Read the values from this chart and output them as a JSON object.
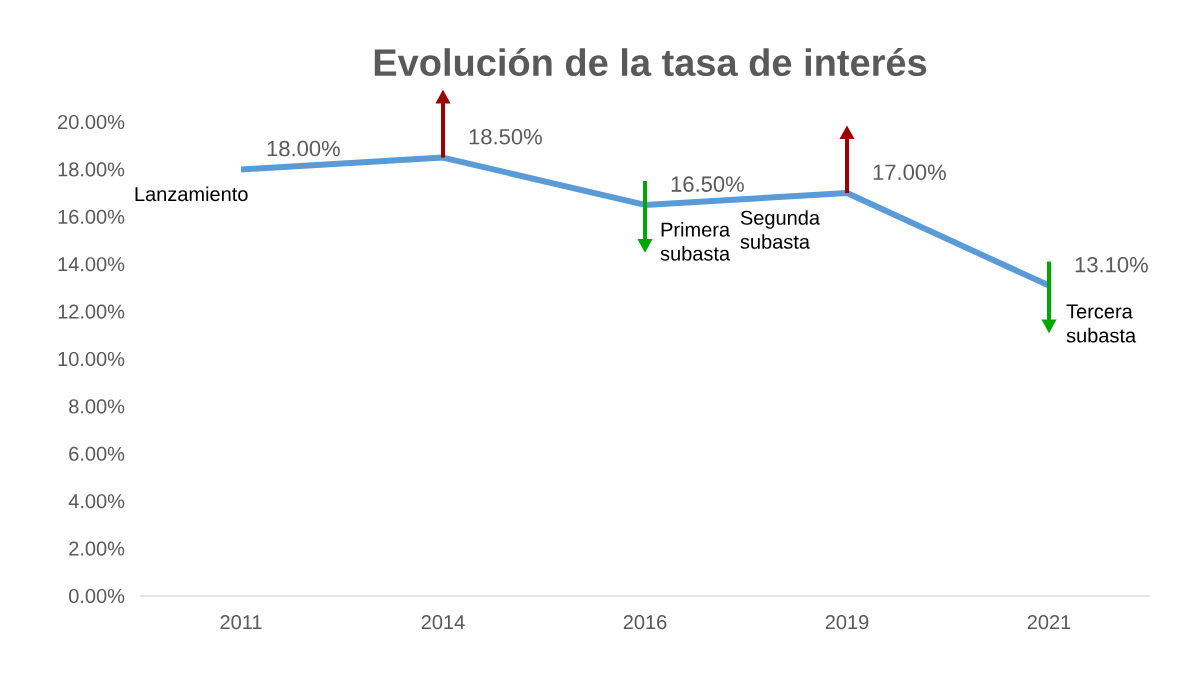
{
  "chart_data": {
    "type": "line",
    "title": "Evolución de la tasa de interés",
    "categories": [
      "2011",
      "2014",
      "2016",
      "2019",
      "2021"
    ],
    "series": [
      {
        "color": "#5b9bd5",
        "values": [
          18.0,
          18.5,
          16.5,
          17.0,
          13.1
        ],
        "value_labels": [
          "18.00%",
          "18.50%",
          "16.50%",
          "17.00%",
          "13.10%"
        ]
      }
    ],
    "ylim": [
      0,
      20
    ],
    "yticks": [
      {
        "value": 0,
        "label": "0.00%"
      },
      {
        "value": 2,
        "label": "2.00%"
      },
      {
        "value": 4,
        "label": "4.00%"
      },
      {
        "value": 6,
        "label": "6.00%"
      },
      {
        "value": 8,
        "label": "8.00%"
      },
      {
        "value": 10,
        "label": "10.00%"
      },
      {
        "value": 12,
        "label": "12.00%"
      },
      {
        "value": 14,
        "label": "14.00%"
      },
      {
        "value": 16,
        "label": "16.00%"
      },
      {
        "value": 18,
        "label": "18.00%"
      },
      {
        "value": 20,
        "label": "20.00%"
      }
    ],
    "annotations": [
      {
        "text": "Lanzamiento",
        "x": "2011",
        "y": 18.0
      },
      {
        "text": "Primera subasta",
        "x": "2016",
        "y": 16.5
      },
      {
        "text": "Segunda subasta",
        "x": "2019",
        "y": 17.0
      },
      {
        "text": "Tercera subasta",
        "x": "2021",
        "y": 13.1
      }
    ]
  }
}
